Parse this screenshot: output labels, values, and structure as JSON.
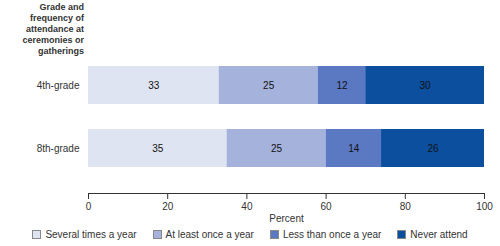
{
  "chart_data": {
    "type": "bar",
    "orientation": "horizontal",
    "stacked": true,
    "data_labels": true,
    "ylabel": "Grade and frequency of attendance at ceremonies or gatherings",
    "xlabel": "Percent",
    "categories": [
      "4th-grade",
      "8th-grade"
    ],
    "series": [
      {
        "name": "Several times a year",
        "color": "#dfe4f2",
        "values": [
          33,
          35
        ]
      },
      {
        "name": "At least once a year",
        "color": "#a4b2dc",
        "values": [
          25,
          25
        ]
      },
      {
        "name": "Less than once a year",
        "color": "#5b78c3",
        "values": [
          12,
          14
        ]
      },
      {
        "name": "Never attend",
        "color": "#0b4f9e",
        "values": [
          30,
          26
        ]
      }
    ],
    "xlim": [
      0,
      100
    ],
    "xticks": [
      0,
      20,
      40,
      60,
      80,
      100
    ],
    "grid": false,
    "legend": "bottom"
  }
}
